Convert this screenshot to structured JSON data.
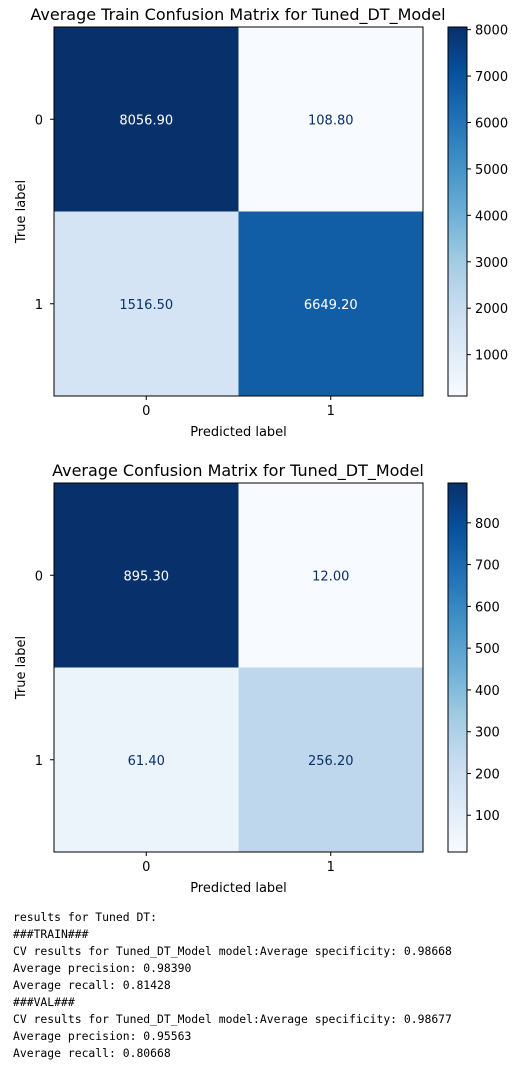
{
  "chart_data": [
    {
      "type": "heatmap",
      "title": "Average Train Confusion Matrix for Tuned_DT_Model",
      "xlabel": "Predicted label",
      "ylabel": "True label",
      "x_categories": [
        "0",
        "1"
      ],
      "y_categories": [
        "0",
        "1"
      ],
      "values": [
        [
          8056.9,
          108.8
        ],
        [
          1516.5,
          6649.2
        ]
      ],
      "value_labels": [
        [
          "8056.90",
          "108.80"
        ],
        [
          "1516.50",
          "6649.20"
        ]
      ],
      "colorbar": {
        "min": 108.8,
        "max": 8056.9,
        "ticks": [
          1000,
          2000,
          3000,
          4000,
          5000,
          6000,
          7000,
          8000
        ]
      },
      "colormap": "Blues"
    },
    {
      "type": "heatmap",
      "title": "Average Confusion Matrix for Tuned_DT_Model",
      "xlabel": "Predicted label",
      "ylabel": "True label",
      "x_categories": [
        "0",
        "1"
      ],
      "y_categories": [
        "0",
        "1"
      ],
      "values": [
        [
          895.3,
          12.0
        ],
        [
          61.4,
          256.2
        ]
      ],
      "value_labels": [
        [
          "895.30",
          "12.00"
        ],
        [
          "61.40",
          "256.20"
        ]
      ],
      "colorbar": {
        "min": 12.0,
        "max": 895.3,
        "ticks": [
          100,
          200,
          300,
          400,
          500,
          600,
          700,
          800
        ]
      },
      "colormap": "Blues"
    }
  ],
  "output_lines": [
    "results for Tuned DT:",
    "###TRAIN###",
    "CV results for Tuned_DT_Model model:Average specificity: 0.98668",
    "Average precision: 0.98390",
    "Average recall: 0.81428",
    "###VAL###",
    "CV results for Tuned_DT_Model model:Average specificity: 0.98677",
    "Average precision: 0.95563",
    "Average recall: 0.80668"
  ]
}
